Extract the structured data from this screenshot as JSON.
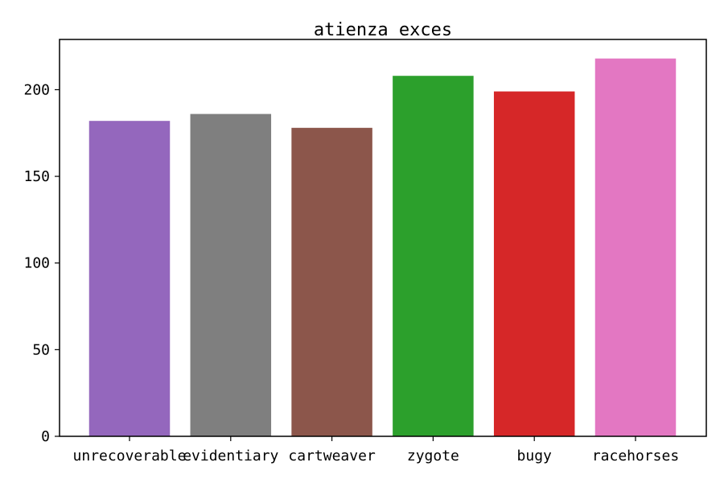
{
  "chart_data": {
    "type": "bar",
    "title": "atienza exces",
    "xlabel": "",
    "ylabel": "",
    "categories": [
      "unrecoverable",
      "evidentiary",
      "cartweaver",
      "zygote",
      "bugy",
      "racehorses"
    ],
    "values": [
      182,
      186,
      178,
      208,
      199,
      218
    ],
    "colors": [
      "#9467bd",
      "#7f7f7f",
      "#8c564b",
      "#2ca02c",
      "#d62728",
      "#e377c2"
    ],
    "yticks": [
      0,
      50,
      100,
      150,
      200
    ],
    "ylim": [
      0,
      229
    ],
    "grid": false,
    "legend": "none"
  }
}
